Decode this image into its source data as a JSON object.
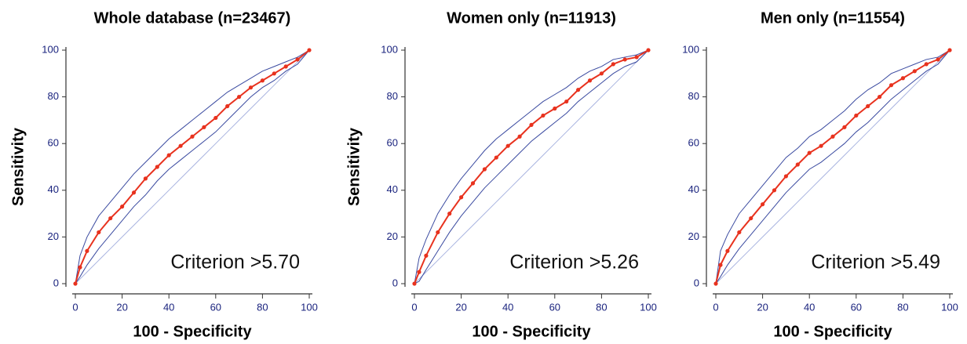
{
  "chart_data": [
    {
      "type": "line",
      "title": "Whole database (n=23467)",
      "x_label": "100 - Specificity",
      "y_label": "Sensitivity",
      "annotation": "Criterion >5.70",
      "x": [
        0,
        2,
        5,
        10,
        15,
        20,
        25,
        30,
        35,
        40,
        45,
        50,
        55,
        60,
        65,
        70,
        75,
        80,
        85,
        90,
        95,
        100
      ],
      "series": [
        {
          "color": "#a9b4e0",
          "values": [
            0,
            2,
            5,
            10,
            15,
            20,
            25,
            30,
            35,
            40,
            45,
            50,
            55,
            60,
            65,
            70,
            75,
            80,
            85,
            90,
            95,
            100
          ]
        },
        {
          "color": "#3a4aa0",
          "values": [
            0,
            12,
            20,
            29,
            35,
            41,
            47,
            52,
            57,
            62,
            66,
            70,
            74,
            78,
            82,
            85,
            88,
            91,
            93,
            95,
            97,
            100
          ]
        },
        {
          "color": "#3a4aa0",
          "values": [
            0,
            3,
            8,
            15,
            21,
            27,
            33,
            38,
            44,
            49,
            53,
            57,
            61,
            65,
            70,
            75,
            80,
            84,
            87,
            91,
            94,
            100
          ]
        },
        {
          "color": "#e8321e",
          "marker": true,
          "values": [
            0,
            7,
            14,
            22,
            28,
            33,
            39,
            45,
            50,
            55,
            59,
            63,
            67,
            71,
            76,
            80,
            84,
            87,
            90,
            93,
            96,
            100
          ]
        }
      ],
      "xlim": [
        0,
        100
      ],
      "ylim": [
        0,
        100
      ],
      "xticks": [
        0,
        20,
        40,
        60,
        80,
        100
      ],
      "yticks": [
        0,
        20,
        40,
        60,
        80,
        100
      ]
    },
    {
      "type": "line",
      "title": "Women only (n=11913)",
      "x_label": "100 - Specificity",
      "y_label": "Sensitivity",
      "annotation": "Criterion >5.26",
      "x": [
        0,
        2,
        5,
        10,
        15,
        20,
        25,
        30,
        35,
        40,
        45,
        50,
        55,
        60,
        65,
        70,
        75,
        80,
        85,
        90,
        95,
        100
      ],
      "series": [
        {
          "color": "#a9b4e0",
          "values": [
            0,
            2,
            5,
            10,
            15,
            20,
            25,
            30,
            35,
            40,
            45,
            50,
            55,
            60,
            65,
            70,
            75,
            80,
            85,
            90,
            95,
            100
          ]
        },
        {
          "color": "#3a4aa0",
          "values": [
            0,
            11,
            19,
            30,
            38,
            45,
            51,
            57,
            62,
            66,
            70,
            74,
            78,
            81,
            84,
            88,
            91,
            93,
            96,
            97,
            98,
            100
          ]
        },
        {
          "color": "#3a4aa0",
          "values": [
            0,
            1,
            6,
            14,
            22,
            29,
            35,
            41,
            46,
            51,
            56,
            61,
            65,
            69,
            73,
            78,
            82,
            86,
            90,
            93,
            95,
            100
          ]
        },
        {
          "color": "#e8321e",
          "marker": true,
          "values": [
            0,
            5,
            12,
            22,
            30,
            37,
            43,
            49,
            54,
            59,
            63,
            68,
            72,
            75,
            78,
            83,
            87,
            90,
            94,
            96,
            97,
            100
          ]
        }
      ],
      "xlim": [
        0,
        100
      ],
      "ylim": [
        0,
        100
      ],
      "xticks": [
        0,
        20,
        40,
        60,
        80,
        100
      ],
      "yticks": [
        0,
        20,
        40,
        60,
        80,
        100
      ]
    },
    {
      "type": "line",
      "title": "Men only (n=11554)",
      "x_label": "100 - Specificity",
      "annotation": "Criterion >5.49",
      "x": [
        0,
        2,
        5,
        10,
        15,
        20,
        25,
        30,
        35,
        40,
        45,
        50,
        55,
        60,
        65,
        70,
        75,
        80,
        85,
        90,
        95,
        100
      ],
      "series": [
        {
          "color": "#a9b4e0",
          "values": [
            0,
            2,
            5,
            10,
            15,
            20,
            25,
            30,
            35,
            40,
            45,
            50,
            55,
            60,
            65,
            70,
            75,
            80,
            85,
            90,
            95,
            100
          ]
        },
        {
          "color": "#3a4aa0",
          "values": [
            0,
            14,
            21,
            30,
            36,
            42,
            48,
            54,
            58,
            63,
            66,
            70,
            74,
            79,
            83,
            86,
            90,
            92,
            94,
            96,
            97,
            100
          ]
        },
        {
          "color": "#3a4aa0",
          "values": [
            0,
            3,
            8,
            15,
            21,
            27,
            33,
            39,
            44,
            49,
            52,
            56,
            60,
            65,
            69,
            74,
            79,
            83,
            87,
            91,
            94,
            100
          ]
        },
        {
          "color": "#e8321e",
          "marker": true,
          "values": [
            0,
            8,
            14,
            22,
            28,
            34,
            40,
            46,
            51,
            56,
            59,
            63,
            67,
            72,
            76,
            80,
            85,
            88,
            91,
            94,
            96,
            100
          ]
        }
      ],
      "xlim": [
        0,
        100
      ],
      "ylim": [
        0,
        100
      ],
      "xticks": [
        0,
        20,
        40,
        60,
        80,
        100
      ],
      "yticks": [
        0,
        20,
        40,
        60,
        80,
        100
      ]
    }
  ]
}
